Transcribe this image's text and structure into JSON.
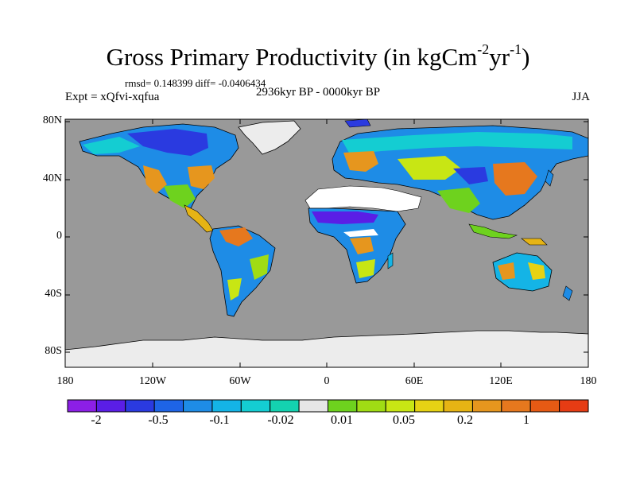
{
  "title": {
    "main": "Gross Primary Productivity (in kgCm",
    "exp1": "-2",
    "mid": "yr",
    "exp2": "-1",
    "end": ")"
  },
  "stats": "rmsd= 0.148399 diff= -0.0406434",
  "experiment": "Expt = xQfvi-xqfua",
  "period": "2936kyr BP - 0000kyr BP",
  "season": "JJA",
  "lat_labels": [
    "80N",
    "40N",
    "0",
    "40S",
    "80S"
  ],
  "lon_labels": [
    "180",
    "120W",
    "60W",
    "0",
    "60E",
    "120E",
    "180"
  ],
  "colorbar": {
    "colors": [
      "#8c1fe6",
      "#5a1ee6",
      "#2a3ae0",
      "#1e64e6",
      "#1e8ce6",
      "#14b4e6",
      "#14cdd2",
      "#14d2b0",
      "#e6e6e6",
      "#6ed21e",
      "#a0dc14",
      "#c8e614",
      "#e6d214",
      "#e6b414",
      "#e6961e",
      "#e6781e",
      "#e65a14",
      "#e63c14"
    ],
    "labels": [
      "-2",
      "-0.5",
      "-0.1",
      "-0.02",
      "0.01",
      "0.05",
      "0.2",
      "1"
    ]
  },
  "colors": {
    "ocean": "#999999",
    "ice": "#ececec",
    "near_zero": "#ffffff"
  }
}
